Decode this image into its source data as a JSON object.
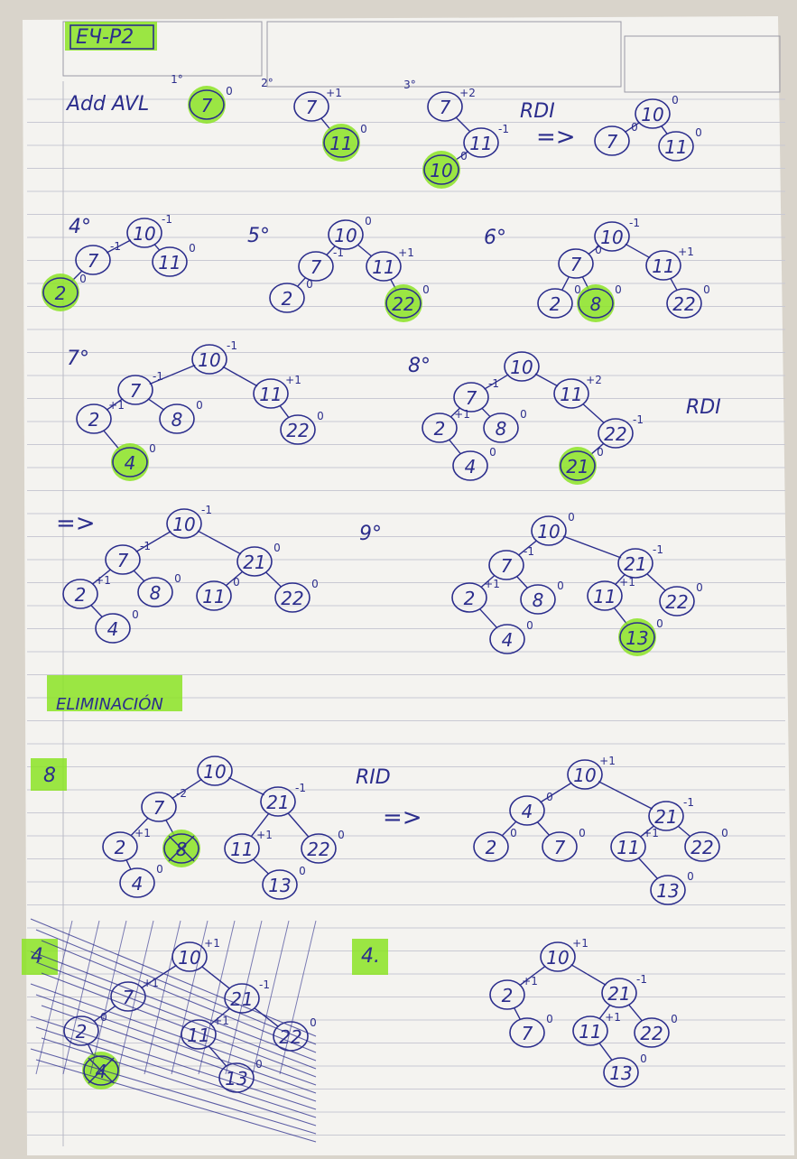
{
  "header": {
    "box_label": "EЧ-P2"
  },
  "labels": {
    "add_title": "Add AVL",
    "step1": "1°",
    "step2": "2°",
    "step3": "3°",
    "step4": "4°",
    "step5": "5°",
    "step6": "6°",
    "step7": "7°",
    "step8": "8°",
    "step9": "9°",
    "rdi_1": "RDI",
    "rdi_2": "RDI",
    "rid": "RID",
    "arrow": "=>",
    "elim_title": "ELIMINACIÓN",
    "del_8": "8",
    "del_4": "4",
    "del_4b": "4."
  },
  "trees": [
    {
      "id": "t1",
      "nodes": [
        [
          "7",
          "0",
          true
        ]
      ],
      "edges": []
    },
    {
      "id": "t2",
      "nodes": [
        [
          "7",
          "+1",
          false
        ],
        [
          "11",
          "0",
          true
        ]
      ],
      "edges": [
        [
          0,
          1
        ]
      ]
    },
    {
      "id": "t3",
      "nodes": [
        [
          "7",
          "+2",
          false
        ],
        [
          "11",
          "-1",
          false
        ],
        [
          "10",
          "0",
          true
        ]
      ],
      "edges": [
        [
          0,
          1
        ],
        [
          1,
          2
        ]
      ]
    },
    {
      "id": "t3r",
      "nodes": [
        [
          "10",
          "0",
          false
        ],
        [
          "7",
          "0",
          false
        ],
        [
          "11",
          "0",
          false
        ]
      ],
      "edges": [
        [
          0,
          1
        ],
        [
          0,
          2
        ]
      ]
    },
    {
      "id": "t4",
      "nodes": [
        [
          "10",
          "-1",
          false
        ],
        [
          "7",
          "-1",
          false
        ],
        [
          "11",
          "0",
          false
        ],
        [
          "2",
          "0",
          true
        ]
      ],
      "edges": [
        [
          0,
          1
        ],
        [
          0,
          2
        ],
        [
          1,
          3
        ]
      ]
    },
    {
      "id": "t5",
      "nodes": [
        [
          "10",
          "0",
          false
        ],
        [
          "7",
          "-1",
          false
        ],
        [
          "11",
          "+1",
          false
        ],
        [
          "2",
          "0",
          false
        ],
        [
          "22",
          "0",
          true
        ]
      ],
      "edges": [
        [
          0,
          1
        ],
        [
          0,
          2
        ],
        [
          1,
          3
        ],
        [
          2,
          4
        ]
      ]
    },
    {
      "id": "t6",
      "nodes": [
        [
          "10",
          "-1",
          false
        ],
        [
          "7",
          "0",
          false
        ],
        [
          "11",
          "+1",
          false
        ],
        [
          "2",
          "0",
          false
        ],
        [
          "8",
          "0",
          true
        ],
        [
          "22",
          "0",
          false
        ]
      ],
      "edges": [
        [
          0,
          1
        ],
        [
          0,
          2
        ],
        [
          1,
          3
        ],
        [
          1,
          4
        ],
        [
          2,
          5
        ]
      ]
    },
    {
      "id": "t7",
      "nodes": [
        [
          "10",
          "-1",
          false
        ],
        [
          "7",
          "-1",
          false
        ],
        [
          "11",
          "+1",
          false
        ],
        [
          "2",
          "+1",
          false
        ],
        [
          "8",
          "0",
          false
        ],
        [
          "22",
          "0",
          false
        ],
        [
          "4",
          "0",
          true
        ]
      ],
      "edges": [
        [
          0,
          1
        ],
        [
          0,
          2
        ],
        [
          1,
          3
        ],
        [
          1,
          4
        ],
        [
          2,
          5
        ],
        [
          3,
          6
        ]
      ]
    },
    {
      "id": "t8",
      "nodes": [
        [
          "10",
          "",
          false
        ],
        [
          "7",
          "-1",
          false
        ],
        [
          "11",
          "+2",
          false
        ],
        [
          "2",
          "+1",
          false
        ],
        [
          "8",
          "0",
          false
        ],
        [
          "22",
          "-1",
          false
        ],
        [
          "4",
          "0",
          false
        ],
        [
          "21",
          "0",
          true
        ]
      ],
      "edges": [
        [
          0,
          1
        ],
        [
          0,
          2
        ],
        [
          1,
          3
        ],
        [
          1,
          4
        ],
        [
          2,
          5
        ],
        [
          3,
          6
        ],
        [
          5,
          7
        ]
      ]
    },
    {
      "id": "t8r",
      "nodes": [
        [
          "10",
          "-1",
          false
        ],
        [
          "7",
          "-1",
          false
        ],
        [
          "21",
          "0",
          false
        ],
        [
          "2",
          "+1",
          false
        ],
        [
          "8",
          "0",
          false
        ],
        [
          "11",
          "0",
          false
        ],
        [
          "22",
          "0",
          false
        ],
        [
          "4",
          "0",
          false
        ]
      ],
      "edges": [
        [
          0,
          1
        ],
        [
          0,
          2
        ],
        [
          1,
          3
        ],
        [
          1,
          4
        ],
        [
          2,
          5
        ],
        [
          2,
          6
        ],
        [
          3,
          7
        ]
      ]
    },
    {
      "id": "t9",
      "nodes": [
        [
          "10",
          "0",
          false
        ],
        [
          "7",
          "-1",
          false
        ],
        [
          "21",
          "-1",
          false
        ],
        [
          "2",
          "+1",
          false
        ],
        [
          "8",
          "0",
          false
        ],
        [
          "11",
          "+1",
          false
        ],
        [
          "22",
          "0",
          false
        ],
        [
          "4",
          "0",
          false
        ],
        [
          "13",
          "0",
          true
        ]
      ],
      "edges": [
        [
          0,
          1
        ],
        [
          0,
          2
        ],
        [
          1,
          3
        ],
        [
          1,
          4
        ],
        [
          2,
          5
        ],
        [
          2,
          6
        ],
        [
          3,
          7
        ],
        [
          5,
          8
        ]
      ]
    },
    {
      "id": "e1",
      "nodes": [
        [
          "10",
          "",
          false
        ],
        [
          "7",
          "-2",
          false
        ],
        [
          "21",
          "-1",
          false
        ],
        [
          "2",
          "+1",
          false
        ],
        [
          "8",
          "",
          true
        ],
        [
          "11",
          "+1",
          false
        ],
        [
          "22",
          "0",
          false
        ],
        [
          "4",
          "0",
          false
        ],
        [
          "13",
          "0",
          false
        ]
      ],
      "edges": [
        [
          0,
          1
        ],
        [
          0,
          2
        ],
        [
          1,
          3
        ],
        [
          1,
          4
        ],
        [
          2,
          5
        ],
        [
          2,
          6
        ],
        [
          3,
          7
        ],
        [
          5,
          8
        ]
      ]
    },
    {
      "id": "e1r",
      "nodes": [
        [
          "10",
          "+1",
          false
        ],
        [
          "4",
          "0",
          false
        ],
        [
          "21",
          "-1",
          false
        ],
        [
          "2",
          "0",
          false
        ],
        [
          "7",
          "0",
          false
        ],
        [
          "11",
          "+1",
          false
        ],
        [
          "22",
          "0",
          false
        ],
        [
          "13",
          "0",
          false
        ]
      ],
      "edges": [
        [
          0,
          1
        ],
        [
          0,
          2
        ],
        [
          1,
          3
        ],
        [
          1,
          4
        ],
        [
          2,
          5
        ],
        [
          2,
          6
        ],
        [
          5,
          7
        ]
      ]
    },
    {
      "id": "e2x",
      "nodes": [
        [
          "10",
          "+1",
          false
        ],
        [
          "7",
          "+1",
          false
        ],
        [
          "21",
          "-1",
          false
        ],
        [
          "2",
          "0",
          false
        ],
        [
          "4",
          "",
          true
        ],
        [
          "11",
          "+1",
          false
        ],
        [
          "22",
          "0",
          false
        ],
        [
          "13",
          "0",
          false
        ]
      ],
      "edges": [
        [
          0,
          1
        ],
        [
          0,
          2
        ],
        [
          1,
          3
        ],
        [
          3,
          4
        ],
        [
          2,
          5
        ],
        [
          2,
          6
        ],
        [
          5,
          7
        ]
      ]
    },
    {
      "id": "e2",
      "nodes": [
        [
          "10",
          "+1",
          false
        ],
        [
          "2",
          "+1",
          false
        ],
        [
          "21",
          "-1",
          false
        ],
        [
          "7",
          "0",
          false
        ],
        [
          "11",
          "+1",
          false
        ],
        [
          "22",
          "0",
          false
        ],
        [
          "13",
          "0",
          false
        ]
      ],
      "edges": [
        [
          0,
          1
        ],
        [
          0,
          2
        ],
        [
          1,
          3
        ],
        [
          2,
          4
        ],
        [
          2,
          5
        ],
        [
          4,
          6
        ]
      ]
    }
  ]
}
